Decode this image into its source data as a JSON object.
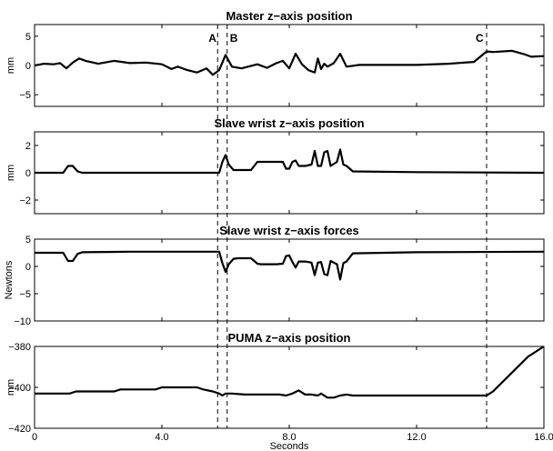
{
  "chart_data": [
    {
      "type": "line",
      "title": "Master z−axis position",
      "ylabel": "mm",
      "xlim": [
        0,
        16
      ],
      "ylim": [
        -7,
        7
      ],
      "yticks": [
        {
          "v": 5,
          "label": "5"
        },
        {
          "v": 0,
          "label": "0"
        },
        {
          "v": -5,
          "label": "−5"
        }
      ],
      "series": [
        {
          "x": [
            0,
            0.3,
            0.6,
            0.8,
            1.0,
            1.2,
            1.4,
            1.6,
            2.0,
            2.5,
            3.0,
            3.5,
            4.0,
            4.3,
            4.5,
            4.8,
            5.1,
            5.4,
            5.6,
            5.8,
            6.0,
            6.2,
            6.5,
            7.0,
            7.3,
            7.6,
            7.8,
            8.0,
            8.2,
            8.4,
            8.6,
            8.8,
            8.9,
            9.0,
            9.1,
            9.2,
            9.4,
            9.6,
            9.8,
            10.2,
            11.0,
            12.0,
            13.0,
            13.8,
            14.2,
            14.4,
            15.0,
            15.4,
            15.6,
            16.0
          ],
          "y": [
            0,
            0.3,
            0.2,
            0.4,
            -0.5,
            0.5,
            1.2,
            0.8,
            0.3,
            0.8,
            0.4,
            0.5,
            0.2,
            -0.6,
            -0.2,
            -0.8,
            -1.2,
            -0.5,
            -1.6,
            -0.8,
            1.8,
            -0.2,
            -0.5,
            0.2,
            -0.4,
            0.4,
            0.8,
            -0.5,
            2.0,
            0.2,
            -0.8,
            -1.2,
            1.2,
            -0.6,
            0.3,
            -0.2,
            0.4,
            2.0,
            -0.2,
            0.1,
            0.1,
            0.1,
            0.3,
            0.6,
            2.4,
            2.3,
            2.5,
            1.9,
            1.5,
            1.6
          ]
        }
      ]
    },
    {
      "type": "line",
      "title": "Slave wrist z−axis position",
      "ylabel": "mm",
      "xlim": [
        0,
        16
      ],
      "ylim": [
        -3,
        3
      ],
      "yticks": [
        {
          "v": 2,
          "label": "2"
        },
        {
          "v": 0,
          "label": "0"
        },
        {
          "v": -2,
          "label": "−2"
        }
      ],
      "series": [
        {
          "x": [
            0,
            0.9,
            1.05,
            1.2,
            1.35,
            1.5,
            3.0,
            5.6,
            5.8,
            5.9,
            6.0,
            6.1,
            6.25,
            6.4,
            6.8,
            7.0,
            7.1,
            7.6,
            7.8,
            7.9,
            8.0,
            8.1,
            8.2,
            8.3,
            8.5,
            8.7,
            8.8,
            8.9,
            9.0,
            9.1,
            9.2,
            9.3,
            9.5,
            9.6,
            9.7,
            9.8,
            10.0,
            12.0,
            16.0
          ],
          "y": [
            0,
            0,
            0.5,
            0.5,
            0.1,
            0,
            0,
            0,
            0,
            0.8,
            1.3,
            0.6,
            0.2,
            0.2,
            0.2,
            0.8,
            0.8,
            0.8,
            0.8,
            0.3,
            0.3,
            0.8,
            0.9,
            0.5,
            0.5,
            0.6,
            1.6,
            0.5,
            0.5,
            1.5,
            1.6,
            0.5,
            0.8,
            1.7,
            0.6,
            0.5,
            0.1,
            0.05,
            0
          ]
        }
      ]
    },
    {
      "type": "line",
      "title": "Slave wrist z−axis forces",
      "ylabel": "Newtons",
      "xlim": [
        0,
        16
      ],
      "ylim": [
        -10,
        5
      ],
      "yticks": [
        {
          "v": 5,
          "label": "5"
        },
        {
          "v": 0,
          "label": "0"
        },
        {
          "v": -5,
          "label": "−5"
        },
        {
          "v": -10,
          "label": "−10"
        }
      ],
      "series": [
        {
          "x": [
            0,
            0.9,
            1.05,
            1.2,
            1.35,
            1.5,
            3.0,
            5.6,
            5.8,
            5.9,
            6.0,
            6.1,
            6.25,
            6.4,
            6.8,
            7.0,
            7.1,
            7.6,
            7.8,
            7.9,
            8.0,
            8.1,
            8.2,
            8.3,
            8.5,
            8.7,
            8.8,
            8.9,
            9.0,
            9.1,
            9.2,
            9.3,
            9.5,
            9.6,
            9.7,
            9.8,
            10.0,
            12.0,
            16.0
          ],
          "y": [
            2.5,
            2.5,
            1.0,
            1.0,
            2.3,
            2.6,
            2.7,
            2.7,
            2.7,
            0.6,
            -1.0,
            0.4,
            1.4,
            1.5,
            1.5,
            0.5,
            0.4,
            0.4,
            0.5,
            1.9,
            2.0,
            0.8,
            -0.2,
            0.9,
            0.9,
            0.7,
            -1.6,
            0.7,
            0.8,
            -1.4,
            -1.6,
            1.0,
            0.4,
            -2.4,
            0.6,
            0.9,
            2.4,
            2.6,
            2.7
          ]
        }
      ]
    },
    {
      "type": "line",
      "title": "PUMA z−axis position",
      "ylabel": "mm",
      "xlim": [
        0,
        16
      ],
      "ylim": [
        -420,
        -380
      ],
      "yticks": [
        {
          "v": -380,
          "label": "−380"
        },
        {
          "v": -400,
          "label": "−400"
        },
        {
          "v": -420,
          "label": "−420"
        }
      ],
      "xlabel": "Seconds",
      "xticks": [
        {
          "v": 0,
          "label": "0"
        },
        {
          "v": 4,
          "label": "4.0"
        },
        {
          "v": 8,
          "label": "8.0"
        },
        {
          "v": 12,
          "label": "12.0"
        },
        {
          "v": 16,
          "label": "16.0"
        }
      ],
      "series": [
        {
          "x": [
            0,
            1.1,
            1.3,
            2.5,
            2.7,
            3.8,
            4.0,
            5.1,
            5.3,
            5.6,
            5.8,
            5.9,
            6.0,
            6.2,
            6.6,
            7.0,
            7.5,
            7.7,
            7.9,
            8.1,
            8.3,
            8.5,
            8.7,
            8.9,
            9.0,
            9.2,
            9.4,
            9.6,
            9.8,
            10.0,
            12.0,
            14.2,
            14.4,
            15.5,
            16.0
          ],
          "y": [
            -403,
            -403,
            -402,
            -402,
            -401,
            -401,
            -400,
            -400,
            -401,
            -402,
            -403,
            -404,
            -403,
            -403,
            -403.5,
            -403.5,
            -403.5,
            -403.5,
            -404,
            -403,
            -401.5,
            -403.5,
            -403.5,
            -404,
            -403,
            -405,
            -405,
            -404,
            -403.5,
            -404,
            -404,
            -404,
            -402,
            -385,
            -380
          ]
        }
      ]
    }
  ],
  "event_markers": [
    {
      "label": "A",
      "x": 5.75
    },
    {
      "label": "B",
      "x": 6.05
    },
    {
      "label": "C",
      "x": 14.2
    }
  ]
}
